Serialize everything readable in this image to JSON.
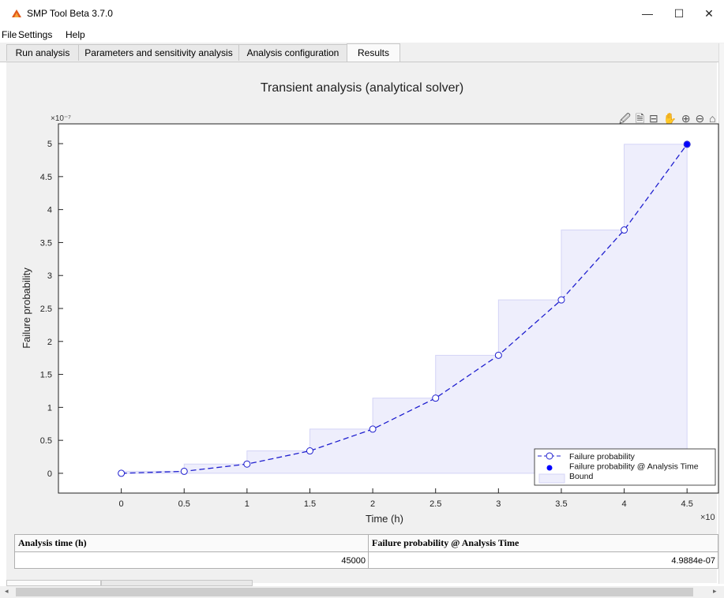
{
  "window": {
    "title": "SMP Tool Beta 3.7.0",
    "minimize": "—",
    "maximize": "☐",
    "close": "✕"
  },
  "menu": [
    "File",
    "Settings",
    "Help"
  ],
  "tabs": [
    {
      "label": "Run analysis",
      "active": false
    },
    {
      "label": "Parameters and sensitivity analysis",
      "active": false
    },
    {
      "label": "Analysis configuration",
      "active": false
    },
    {
      "label": "Results",
      "active": true
    }
  ],
  "toolbar_icons": "🖉 🗎 ⊟ ✋ ⊕ ⊖ ⌂",
  "chart_data": {
    "type": "line",
    "title": "Transient analysis (analytical solver)",
    "xlabel": "Time (h)",
    "ylabel": "Failure probability",
    "y_exponent": "×10⁻⁷",
    "x_exponent": "×10",
    "xlim": [
      -0.5,
      4.75
    ],
    "ylim": [
      -0.3,
      5.3
    ],
    "x_ticks": [
      0,
      0.5,
      1,
      1.5,
      2,
      2.5,
      3,
      3.5,
      4,
      4.5
    ],
    "x_tick_labels": [
      "0",
      "0.5",
      "1",
      "1.5",
      "2",
      "2.5",
      "3",
      "3.5",
      "4",
      "4.5"
    ],
    "y_ticks": [
      0,
      0.5,
      1,
      1.5,
      2,
      2.5,
      3,
      3.5,
      4,
      4.5,
      5
    ],
    "y_tick_labels": [
      "0",
      "0.5",
      "1",
      "1.5",
      "2",
      "2.5",
      "3",
      "3.5",
      "4",
      "4.5",
      "5"
    ],
    "series": [
      {
        "name": "Failure probability",
        "style": "dashed-open-circle",
        "color": "#1f1fcf",
        "x": [
          0,
          0.5,
          1,
          1.5,
          2,
          2.5,
          3,
          3.5,
          4,
          4.5
        ],
        "y": [
          0,
          0.03,
          0.14,
          0.34,
          0.67,
          1.14,
          1.79,
          2.63,
          3.69,
          4.99
        ]
      },
      {
        "name": "Failure probability @ Analysis Time",
        "style": "filled-point",
        "color": "#0000ff",
        "x": [
          4.5
        ],
        "y": [
          4.99
        ]
      },
      {
        "name": "Bound",
        "style": "step-area",
        "color": "#eeeefc",
        "x": [
          0,
          0.5,
          1,
          1.5,
          2,
          2.5,
          3,
          3.5,
          4,
          4.5
        ],
        "y": [
          0.03,
          0.14,
          0.34,
          0.67,
          1.14,
          1.79,
          2.63,
          3.69,
          4.99,
          4.99
        ]
      }
    ],
    "legend": [
      "Failure probability",
      "Failure probability @ Analysis Time",
      "Bound"
    ],
    "legend_position": "bottom-right",
    "grid": false
  },
  "results_table": {
    "headers": [
      "Analysis time (h)",
      "Failure probability @ Analysis Time"
    ],
    "row": [
      "45000",
      "4.9884e-07"
    ]
  }
}
